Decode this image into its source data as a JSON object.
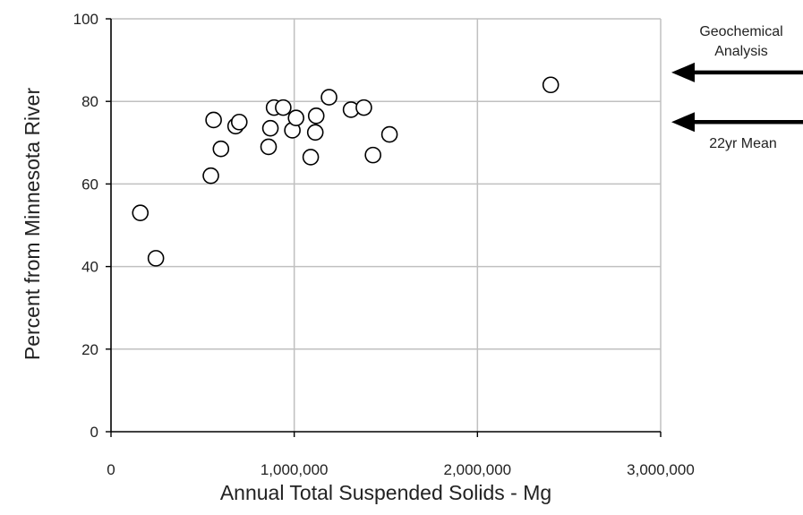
{
  "chart_data": {
    "type": "scatter",
    "title": "",
    "xlabel": "Annual Total Suspended  Solids  - Mg",
    "ylabel": "Percent from Minnesota River",
    "xlim": [
      0,
      3000000
    ],
    "ylim": [
      0,
      100
    ],
    "x_ticks": [
      0,
      1000000,
      2000000,
      3000000
    ],
    "x_tick_labels": [
      "0",
      "1,000,000",
      "2,000,000",
      "3,000,000"
    ],
    "y_ticks": [
      0,
      20,
      40,
      60,
      80,
      100
    ],
    "y_tick_labels": [
      "0",
      "20",
      "40",
      "60",
      "80",
      "100"
    ],
    "grid": true,
    "legend": "none",
    "marker": "open-circle",
    "points": [
      {
        "x": 160000,
        "y": 53
      },
      {
        "x": 245000,
        "y": 42
      },
      {
        "x": 545000,
        "y": 62
      },
      {
        "x": 560000,
        "y": 75.5
      },
      {
        "x": 600000,
        "y": 68.5
      },
      {
        "x": 680000,
        "y": 74
      },
      {
        "x": 700000,
        "y": 75
      },
      {
        "x": 860000,
        "y": 69
      },
      {
        "x": 870000,
        "y": 73.5
      },
      {
        "x": 890000,
        "y": 78.5
      },
      {
        "x": 940000,
        "y": 78.5
      },
      {
        "x": 990000,
        "y": 73
      },
      {
        "x": 1010000,
        "y": 76
      },
      {
        "x": 1090000,
        "y": 66.5
      },
      {
        "x": 1115000,
        "y": 72.5
      },
      {
        "x": 1120000,
        "y": 76.5
      },
      {
        "x": 1190000,
        "y": 81
      },
      {
        "x": 1310000,
        "y": 78
      },
      {
        "x": 1380000,
        "y": 78.5
      },
      {
        "x": 1430000,
        "y": 67
      },
      {
        "x": 1520000,
        "y": 72
      },
      {
        "x": 2400000,
        "y": 84
      }
    ],
    "annotations": [
      {
        "id": "geochemical",
        "line1": "Geochemical",
        "line2": "Analysis",
        "y": 87
      },
      {
        "id": "mean",
        "line1": "22yr Mean",
        "line2": "",
        "y": 75
      }
    ]
  },
  "colors": {
    "axis": "#000000",
    "grid": "#c0c0c0",
    "marker_stroke": "#000000",
    "marker_fill": "#ffffff",
    "arrow": "#000000",
    "text": "#222222"
  }
}
